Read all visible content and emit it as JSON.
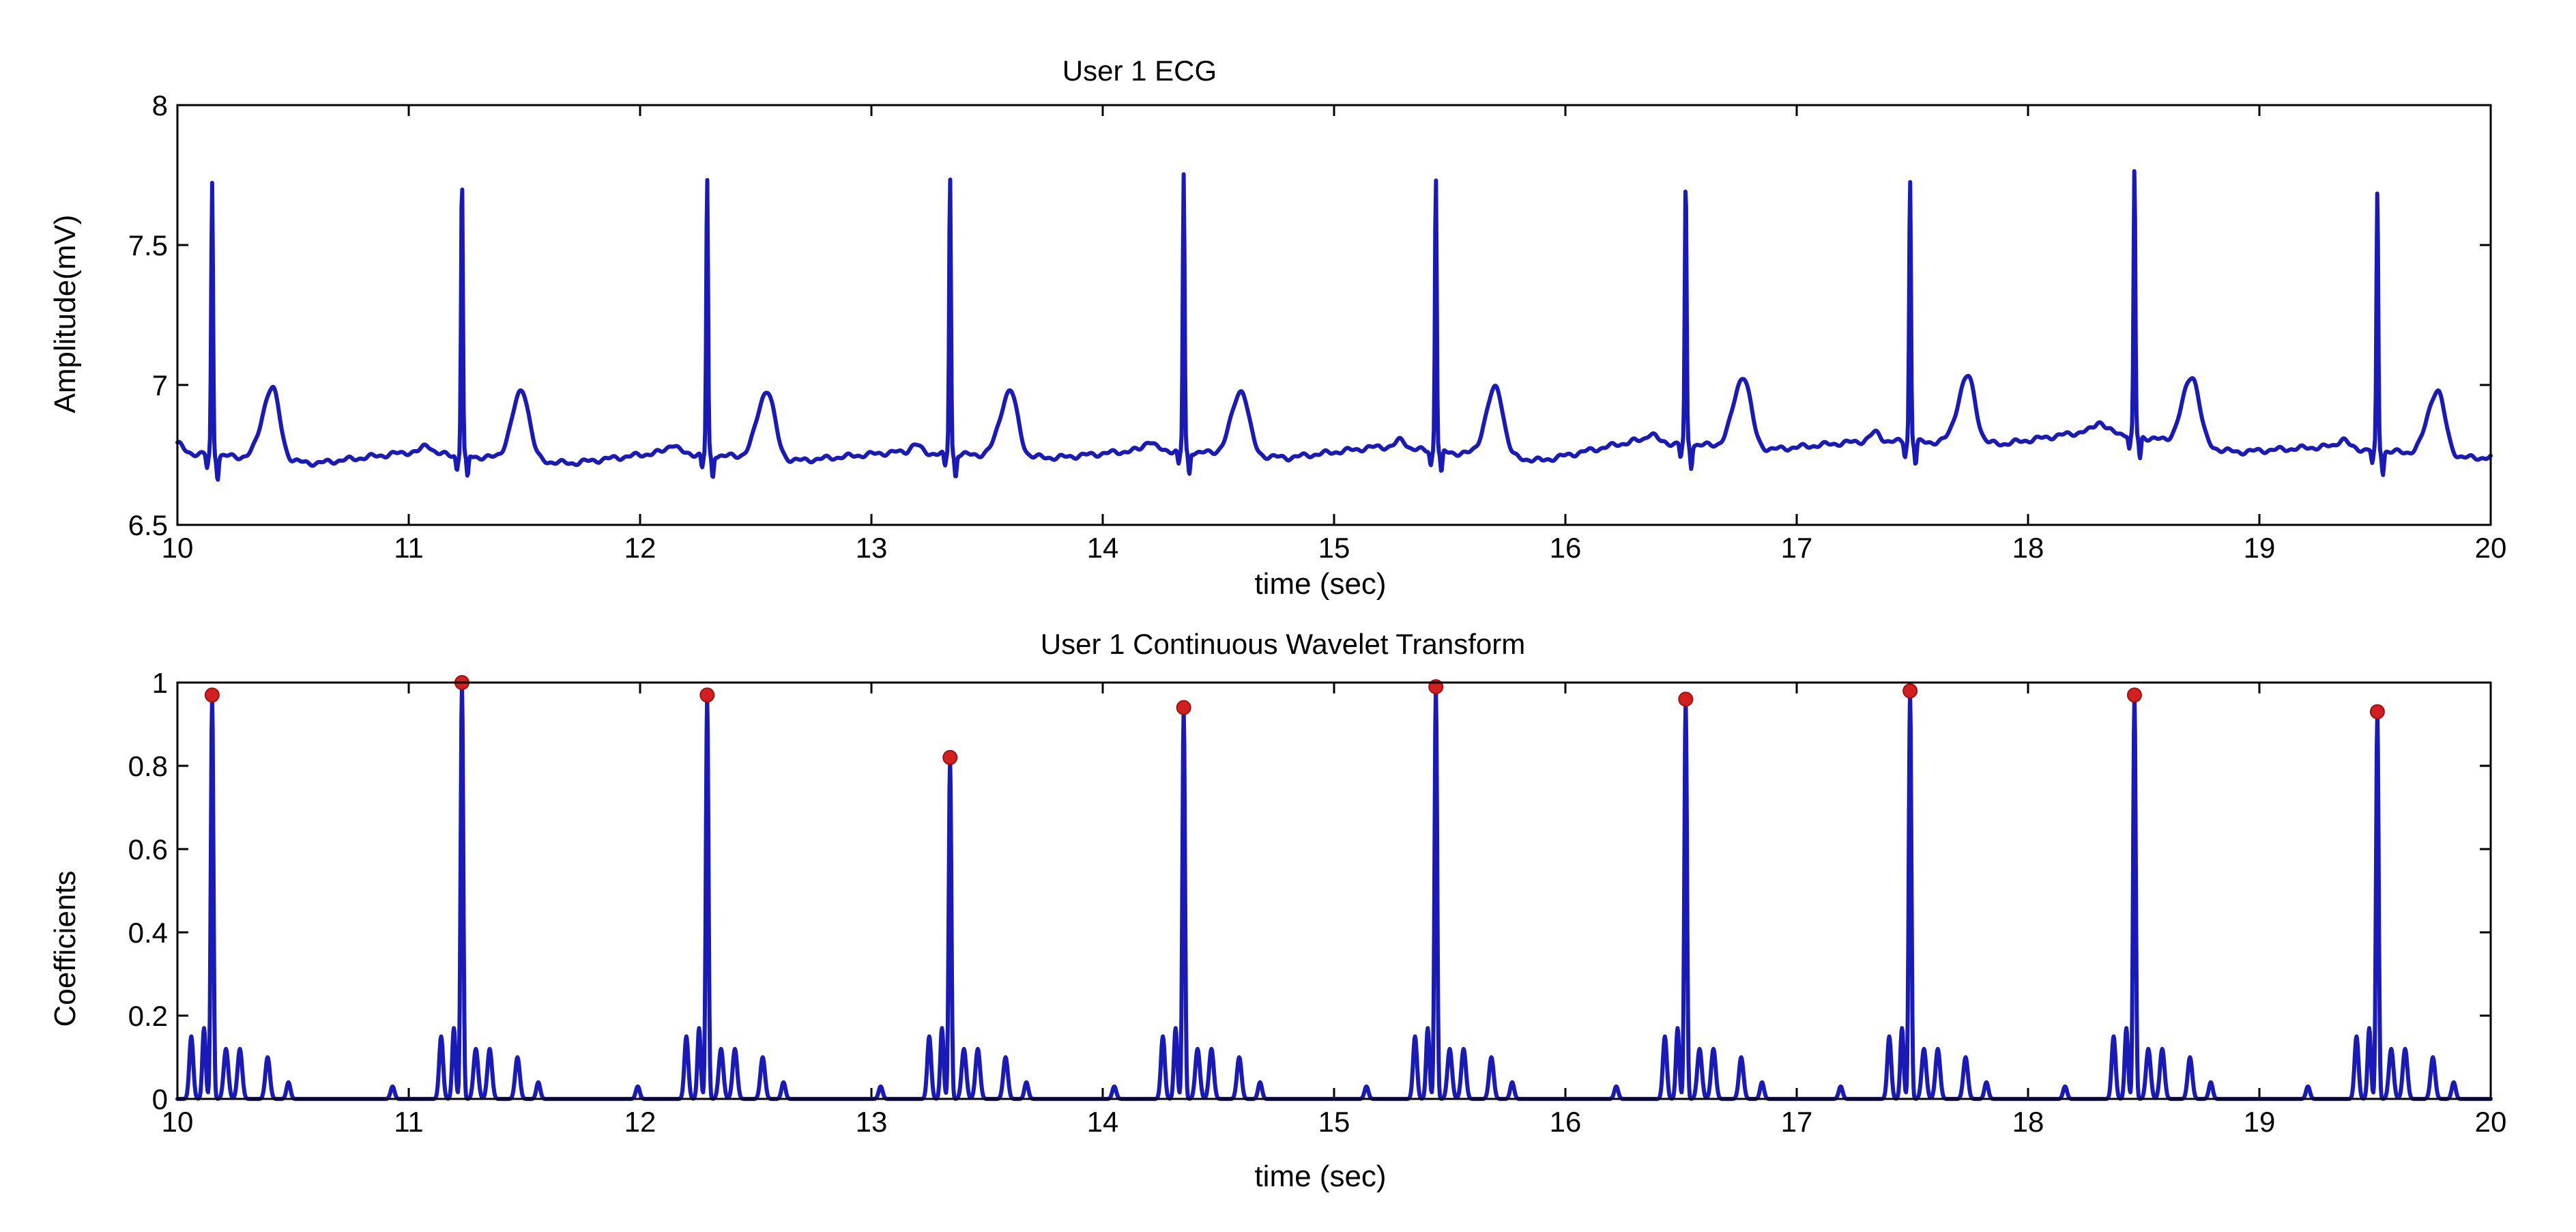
{
  "chart_data": [
    {
      "type": "line",
      "title": "User 1 ECG",
      "xlabel": "time (sec)",
      "ylabel": "Amplitude(mV)",
      "xlim": [
        10,
        20
      ],
      "ylim": [
        6.5,
        8
      ],
      "x_ticks": [
        10,
        11,
        12,
        13,
        14,
        15,
        16,
        17,
        18,
        19,
        20
      ],
      "y_ticks": [
        6.5,
        7,
        7.5,
        8
      ],
      "color": "#1a1ab8",
      "baseline_points": [
        {
          "x": 10.0,
          "y": 6.76
        },
        {
          "x": 10.6,
          "y": 6.72
        },
        {
          "x": 11.0,
          "y": 6.76
        },
        {
          "x": 11.7,
          "y": 6.72
        },
        {
          "x": 12.1,
          "y": 6.76
        },
        {
          "x": 12.7,
          "y": 6.73
        },
        {
          "x": 13.1,
          "y": 6.76
        },
        {
          "x": 13.8,
          "y": 6.74
        },
        {
          "x": 14.2,
          "y": 6.77
        },
        {
          "x": 14.8,
          "y": 6.74
        },
        {
          "x": 15.2,
          "y": 6.78
        },
        {
          "x": 15.9,
          "y": 6.73
        },
        {
          "x": 16.3,
          "y": 6.8
        },
        {
          "x": 16.9,
          "y": 6.77
        },
        {
          "x": 17.3,
          "y": 6.8
        },
        {
          "x": 17.9,
          "y": 6.79
        },
        {
          "x": 18.3,
          "y": 6.84
        },
        {
          "x": 18.9,
          "y": 6.76
        },
        {
          "x": 19.3,
          "y": 6.78
        },
        {
          "x": 19.9,
          "y": 6.74
        },
        {
          "x": 20.0,
          "y": 6.74
        }
      ],
      "r_peaks": [
        {
          "x": 10.15,
          "y": 7.72
        },
        {
          "x": 11.23,
          "y": 7.75
        },
        {
          "x": 12.29,
          "y": 7.74
        },
        {
          "x": 13.34,
          "y": 7.75
        },
        {
          "x": 14.35,
          "y": 7.75
        },
        {
          "x": 15.44,
          "y": 7.75
        },
        {
          "x": 16.52,
          "y": 7.73
        },
        {
          "x": 17.49,
          "y": 7.74
        },
        {
          "x": 18.46,
          "y": 7.77
        },
        {
          "x": 19.51,
          "y": 7.69
        }
      ],
      "t_waves": [
        {
          "x": 10.41,
          "y": 6.99
        },
        {
          "x": 11.49,
          "y": 6.98
        },
        {
          "x": 12.55,
          "y": 6.98
        },
        {
          "x": 13.6,
          "y": 6.98
        },
        {
          "x": 14.6,
          "y": 6.98
        },
        {
          "x": 15.7,
          "y": 6.99
        },
        {
          "x": 16.77,
          "y": 7.03
        },
        {
          "x": 17.74,
          "y": 7.03
        },
        {
          "x": 18.71,
          "y": 7.03
        },
        {
          "x": 19.77,
          "y": 6.98
        }
      ]
    },
    {
      "type": "line",
      "title": "User 1 Continuous Wavelet Transform",
      "xlabel": "time (sec)",
      "ylabel": "Coefficients",
      "xlim": [
        10,
        20
      ],
      "ylim": [
        0,
        1
      ],
      "x_ticks": [
        10,
        11,
        12,
        13,
        14,
        15,
        16,
        17,
        18,
        19,
        20
      ],
      "y_ticks": [
        0,
        0.2,
        0.4,
        0.6,
        0.8,
        1
      ],
      "color": "#1a1ab8",
      "marker_color": "#d21f1f",
      "peaks": [
        {
          "x": 10.15,
          "y": 0.97
        },
        {
          "x": 11.23,
          "y": 1.0
        },
        {
          "x": 12.29,
          "y": 0.97
        },
        {
          "x": 13.34,
          "y": 0.82
        },
        {
          "x": 14.35,
          "y": 0.94
        },
        {
          "x": 15.44,
          "y": 0.99
        },
        {
          "x": 16.52,
          "y": 0.96
        },
        {
          "x": 17.49,
          "y": 0.98
        },
        {
          "x": 18.46,
          "y": 0.97
        },
        {
          "x": 19.51,
          "y": 0.93
        }
      ]
    }
  ]
}
